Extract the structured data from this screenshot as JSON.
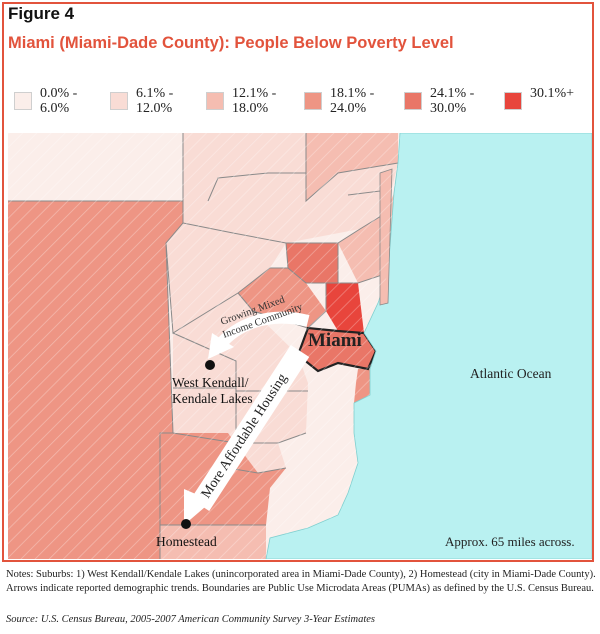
{
  "figure_label": "Figure 4",
  "title": "Miami (Miami-Dade County): People Below Poverty Level",
  "legend": [
    {
      "label": "0.0% -\n6.0%",
      "color": "#fbeeea"
    },
    {
      "label": "6.1% -\n12.0%",
      "color": "#f9dcd5"
    },
    {
      "label": "12.1% -\n18.0%",
      "color": "#f5bdb1"
    },
    {
      "label": "18.1% -\n24.0%",
      "color": "#ee9584"
    },
    {
      "label": "24.1% -\n30.0%",
      "color": "#e97667"
    },
    {
      "label": "30.1%+",
      "color": "#e8453c"
    }
  ],
  "map": {
    "city_label": "Miami",
    "ocean_label": "Atlantic Ocean",
    "suburb_1": [
      "West Kendall/",
      "Kendale Lakes"
    ],
    "suburb_2": "Homestead",
    "arrow_1_label": [
      "Growing Mixed",
      "Income Community"
    ],
    "arrow_2_label": "More Affordable Housing",
    "scale_note": "Approx. 65 miles across.",
    "colors": {
      "ocean": "#b9f1f1",
      "boundary": "#8a8a8a",
      "miami_outline": "#222222"
    }
  },
  "notes": "Notes: Suburbs: 1) West Kendall/Kendale Lakes (unincorporated area in Miami-Dade County), 2) Homestead (city in Miami-Dade County). Arrows indicate reported demographic trends. Boundaries are Public Use Microdata Areas (PUMAs) as defined by the U.S. Census Bureau.",
  "source": "Source: U.S. Census Bureau, 2005-2007 American Community Survey 3-Year Estimates"
}
